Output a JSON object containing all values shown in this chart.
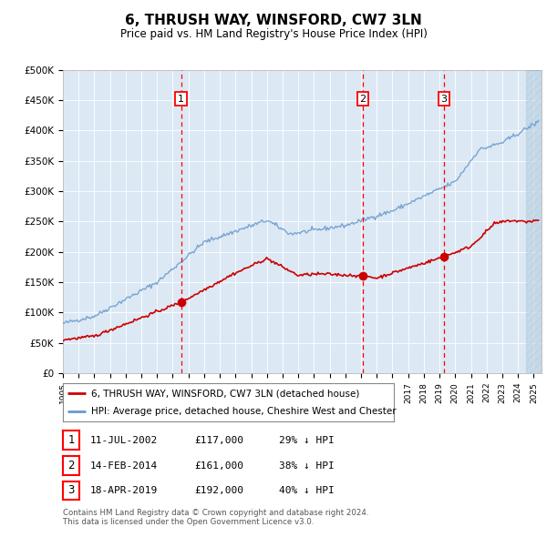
{
  "title": "6, THRUSH WAY, WINSFORD, CW7 3LN",
  "subtitle": "Price paid vs. HM Land Registry's House Price Index (HPI)",
  "ylim": [
    0,
    500000
  ],
  "yticks": [
    0,
    50000,
    100000,
    150000,
    200000,
    250000,
    300000,
    350000,
    400000,
    450000,
    500000
  ],
  "ytick_labels": [
    "£0",
    "£50K",
    "£100K",
    "£150K",
    "£200K",
    "£250K",
    "£300K",
    "£350K",
    "£400K",
    "£450K",
    "£500K"
  ],
  "xlim_start": 1995.0,
  "xlim_end": 2025.5,
  "transactions": [
    {
      "label": "1",
      "year": 2002.53,
      "price": 117000,
      "date": "11-JUL-2002",
      "price_str": "£117,000",
      "hpi_str": "29% ↓ HPI"
    },
    {
      "label": "2",
      "year": 2014.12,
      "price": 161000,
      "date": "14-FEB-2014",
      "price_str": "£161,000",
      "hpi_str": "38% ↓ HPI"
    },
    {
      "label": "3",
      "year": 2019.29,
      "price": 192000,
      "date": "18-APR-2019",
      "price_str": "£192,000",
      "hpi_str": "40% ↓ HPI"
    }
  ],
  "legend_red": "6, THRUSH WAY, WINSFORD, CW7 3LN (detached house)",
  "legend_blue": "HPI: Average price, detached house, Cheshire West and Chester",
  "footer1": "Contains HM Land Registry data © Crown copyright and database right 2024.",
  "footer2": "This data is licensed under the Open Government Licence v3.0.",
  "bg_color": "#dce9f5",
  "hatch_color": "#b8cfe0",
  "red_color": "#cc0000",
  "blue_color": "#6699cc",
  "hatch_start": 2024.5
}
